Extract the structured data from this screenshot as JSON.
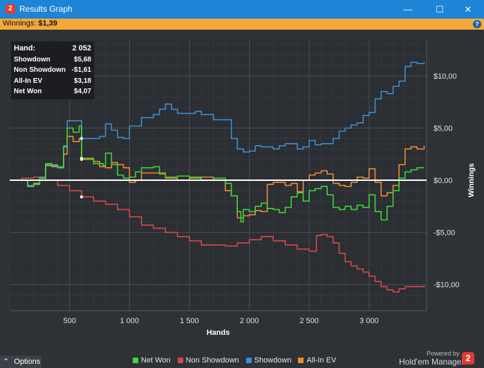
{
  "window": {
    "title": "Results Graph",
    "icon": "app-logo-icon",
    "minimize": "—",
    "maximize": "☐",
    "close": "✕"
  },
  "winnings_bar": {
    "label": "Winnings:",
    "value": "$1,39",
    "help": "?"
  },
  "tooltip": {
    "rows": [
      {
        "label": "Hand:",
        "value": "2 052"
      },
      {
        "label": "Showdown",
        "value": "$5,68"
      },
      {
        "label": "Non Showdown",
        "value": "-$1,61"
      },
      {
        "label": "All-In EV",
        "value": "$3,18"
      },
      {
        "label": "Net Won",
        "value": "$4,07"
      }
    ]
  },
  "options_label": "Options",
  "powered_by": "Powered by",
  "brand": "Hold'em Manager",
  "brand_logo_text": "2",
  "colors": {
    "net_won": "#3fd63a",
    "non_showdown": "#d94a47",
    "showdown": "#3c8fd0",
    "all_in_ev": "#ef8d33",
    "zero_line": "#ffffff",
    "background": "#2e3136"
  },
  "chart_data": {
    "type": "line",
    "xlabel": "Hands",
    "ylabel": "Winnings",
    "xlim": [
      0,
      3480
    ],
    "ylim": [
      -12.5,
      13.5
    ],
    "x_ticks": [
      500,
      1000,
      1500,
      2000,
      2500,
      3000
    ],
    "x_tick_labels": [
      "500",
      "1 000",
      "1 500",
      "2 000",
      "2 500",
      "3 000"
    ],
    "y_ticks": [
      10,
      5,
      0,
      -5,
      -10
    ],
    "y_tick_labels": [
      "$10,00",
      "$5,00",
      "$0,00",
      "-$5,00",
      "-$10,00"
    ],
    "grid": true,
    "legend": "bottom",
    "series": [
      {
        "name": "Net Won",
        "color": "#3fd63a",
        "points": [
          [
            0,
            0
          ],
          [
            150,
            -0.6
          ],
          [
            200,
            -0.4
          ],
          [
            250,
            0.2
          ],
          [
            300,
            1.6
          ],
          [
            350,
            1.3
          ],
          [
            400,
            1.2
          ],
          [
            450,
            3.2
          ],
          [
            480,
            5.0
          ],
          [
            530,
            4.6
          ],
          [
            580,
            5.2
          ],
          [
            600,
            2.0
          ],
          [
            700,
            1.6
          ],
          [
            780,
            1.4
          ],
          [
            800,
            2.6
          ],
          [
            850,
            1.5
          ],
          [
            900,
            0.5
          ],
          [
            950,
            0.2
          ],
          [
            1000,
            0.3
          ],
          [
            1050,
            0.8
          ],
          [
            1100,
            1.2
          ],
          [
            1200,
            1.3
          ],
          [
            1250,
            0.6
          ],
          [
            1300,
            0.3
          ],
          [
            1400,
            0.4
          ],
          [
            1500,
            0.3
          ],
          [
            1600,
            0
          ],
          [
            1700,
            0.2
          ],
          [
            1800,
            -0.3
          ],
          [
            1850,
            -1.5
          ],
          [
            1900,
            -3.0
          ],
          [
            1930,
            -4.0
          ],
          [
            1950,
            -2.8
          ],
          [
            2000,
            -3.0
          ],
          [
            2050,
            -2.5
          ],
          [
            2100,
            -2.2
          ],
          [
            2150,
            -2.7
          ],
          [
            2200,
            -2.8
          ],
          [
            2250,
            -3.1
          ],
          [
            2300,
            -2.6
          ],
          [
            2350,
            -1.6
          ],
          [
            2400,
            -1.2
          ],
          [
            2450,
            -2.0
          ],
          [
            2500,
            -1.0
          ],
          [
            2550,
            -0.8
          ],
          [
            2600,
            -0.6
          ],
          [
            2650,
            -1.4
          ],
          [
            2700,
            -2.6
          ],
          [
            2750,
            -2.8
          ],
          [
            2800,
            -2.5
          ],
          [
            2850,
            -2.8
          ],
          [
            2900,
            -2.4
          ],
          [
            2950,
            -2.6
          ],
          [
            3000,
            -1.4
          ],
          [
            3050,
            -3.0
          ],
          [
            3100,
            -3.8
          ],
          [
            3150,
            -2.5
          ],
          [
            3200,
            -1.0
          ],
          [
            3250,
            0.2
          ],
          [
            3300,
            0.8
          ],
          [
            3350,
            1.0
          ],
          [
            3400,
            1.2
          ],
          [
            3460,
            1.2
          ]
        ]
      },
      {
        "name": "Non Showdown",
        "color": "#d94a47",
        "points": [
          [
            0,
            0
          ],
          [
            100,
            0.2
          ],
          [
            200,
            0.3
          ],
          [
            300,
            0
          ],
          [
            400,
            -0.5
          ],
          [
            500,
            -1.0
          ],
          [
            600,
            -1.6
          ],
          [
            700,
            -2.0
          ],
          [
            800,
            -2.3
          ],
          [
            900,
            -2.8
          ],
          [
            1000,
            -3.5
          ],
          [
            1100,
            -4.3
          ],
          [
            1200,
            -4.6
          ],
          [
            1300,
            -5.0
          ],
          [
            1400,
            -5.4
          ],
          [
            1500,
            -5.8
          ],
          [
            1600,
            -6.2
          ],
          [
            1700,
            -6.2
          ],
          [
            1800,
            -6.3
          ],
          [
            1900,
            -6.0
          ],
          [
            2000,
            -5.7
          ],
          [
            2100,
            -5.4
          ],
          [
            2200,
            -5.8
          ],
          [
            2300,
            -6.2
          ],
          [
            2400,
            -6.6
          ],
          [
            2500,
            -6.8
          ],
          [
            2560,
            -5.3
          ],
          [
            2600,
            -5.2
          ],
          [
            2650,
            -5.4
          ],
          [
            2700,
            -6.0
          ],
          [
            2750,
            -7.0
          ],
          [
            2800,
            -7.8
          ],
          [
            2850,
            -8.2
          ],
          [
            2900,
            -8.5
          ],
          [
            2950,
            -8.8
          ],
          [
            3000,
            -9.2
          ],
          [
            3050,
            -9.7
          ],
          [
            3100,
            -10.2
          ],
          [
            3150,
            -10.5
          ],
          [
            3200,
            -10.7
          ],
          [
            3250,
            -10.4
          ],
          [
            3300,
            -10.2
          ],
          [
            3350,
            -10.2
          ],
          [
            3400,
            -10.2
          ],
          [
            3460,
            -10.1
          ]
        ]
      },
      {
        "name": "Showdown",
        "color": "#3c8fd0",
        "points": [
          [
            0,
            0
          ],
          [
            150,
            -0.5
          ],
          [
            200,
            -0.3
          ],
          [
            250,
            0.3
          ],
          [
            300,
            1.5
          ],
          [
            350,
            1.5
          ],
          [
            400,
            1.3
          ],
          [
            450,
            3.3
          ],
          [
            480,
            5.7
          ],
          [
            520,
            5.7
          ],
          [
            580,
            5.7
          ],
          [
            600,
            4.0
          ],
          [
            700,
            4.0
          ],
          [
            750,
            4.2
          ],
          [
            800,
            5.4
          ],
          [
            850,
            4.8
          ],
          [
            900,
            4.1
          ],
          [
            950,
            4.0
          ],
          [
            1000,
            5.2
          ],
          [
            1100,
            6.0
          ],
          [
            1200,
            6.3
          ],
          [
            1250,
            6.8
          ],
          [
            1300,
            7.3
          ],
          [
            1350,
            6.8
          ],
          [
            1400,
            6.4
          ],
          [
            1500,
            6.4
          ],
          [
            1550,
            6.6
          ],
          [
            1600,
            6.3
          ],
          [
            1700,
            5.8
          ],
          [
            1800,
            5.8
          ],
          [
            1850,
            4.0
          ],
          [
            1900,
            3.0
          ],
          [
            1950,
            2.7
          ],
          [
            2000,
            2.8
          ],
          [
            2050,
            3.3
          ],
          [
            2100,
            3.2
          ],
          [
            2150,
            3.2
          ],
          [
            2200,
            3.0
          ],
          [
            2250,
            3.3
          ],
          [
            2300,
            3.5
          ],
          [
            2400,
            3.0
          ],
          [
            2450,
            3.2
          ],
          [
            2500,
            3.8
          ],
          [
            2550,
            3.4
          ],
          [
            2600,
            3.5
          ],
          [
            2700,
            4.0
          ],
          [
            2750,
            4.7
          ],
          [
            2800,
            5.0
          ],
          [
            2850,
            5.3
          ],
          [
            2900,
            5.5
          ],
          [
            2950,
            6.2
          ],
          [
            3000,
            6.5
          ],
          [
            3050,
            7.8
          ],
          [
            3100,
            8.5
          ],
          [
            3150,
            8.3
          ],
          [
            3200,
            9.0
          ],
          [
            3250,
            9.5
          ],
          [
            3300,
            10.9
          ],
          [
            3350,
            11.3
          ],
          [
            3400,
            11.2
          ],
          [
            3460,
            11.3
          ]
        ]
      },
      {
        "name": "All-In EV",
        "color": "#ef8d33",
        "points": [
          [
            0,
            0
          ],
          [
            150,
            -0.6
          ],
          [
            200,
            -0.3
          ],
          [
            250,
            0.2
          ],
          [
            300,
            1.4
          ],
          [
            350,
            1.4
          ],
          [
            400,
            1.2
          ],
          [
            450,
            2.5
          ],
          [
            480,
            4.2
          ],
          [
            530,
            3.7
          ],
          [
            580,
            4.0
          ],
          [
            600,
            2.1
          ],
          [
            700,
            1.8
          ],
          [
            750,
            1.3
          ],
          [
            800,
            1.2
          ],
          [
            850,
            1.7
          ],
          [
            900,
            1.5
          ],
          [
            950,
            1.2
          ],
          [
            1000,
            -0.2
          ],
          [
            1050,
            0
          ],
          [
            1100,
            0.7
          ],
          [
            1200,
            0.7
          ],
          [
            1300,
            0.2
          ],
          [
            1400,
            0
          ],
          [
            1500,
            0.2
          ],
          [
            1600,
            0.3
          ],
          [
            1700,
            0
          ],
          [
            1800,
            -1.0
          ],
          [
            1850,
            -1.5
          ],
          [
            1900,
            -3.6
          ],
          [
            1950,
            -3.4
          ],
          [
            2000,
            -3.3
          ],
          [
            2050,
            -2.9
          ],
          [
            2100,
            -3.0
          ],
          [
            2150,
            -0.4
          ],
          [
            2200,
            -0.2
          ],
          [
            2300,
            -0.5
          ],
          [
            2350,
            -0.3
          ],
          [
            2400,
            -1.1
          ],
          [
            2450,
            0
          ],
          [
            2500,
            0.5
          ],
          [
            2550,
            0.7
          ],
          [
            2600,
            0.9
          ],
          [
            2650,
            0.6
          ],
          [
            2700,
            -0.3
          ],
          [
            2750,
            -0.5
          ],
          [
            2800,
            -0.6
          ],
          [
            2850,
            -0.2
          ],
          [
            2900,
            0.3
          ],
          [
            2950,
            0.2
          ],
          [
            3000,
            1.1
          ],
          [
            3050,
            -0.2
          ],
          [
            3100,
            -1.5
          ],
          [
            3150,
            -1.2
          ],
          [
            3200,
            -0.5
          ],
          [
            3250,
            1.5
          ],
          [
            3300,
            3.0
          ],
          [
            3350,
            3.2
          ],
          [
            3400,
            3.0
          ],
          [
            3460,
            3.3
          ]
        ]
      }
    ],
    "hover_marker_x": 600
  }
}
